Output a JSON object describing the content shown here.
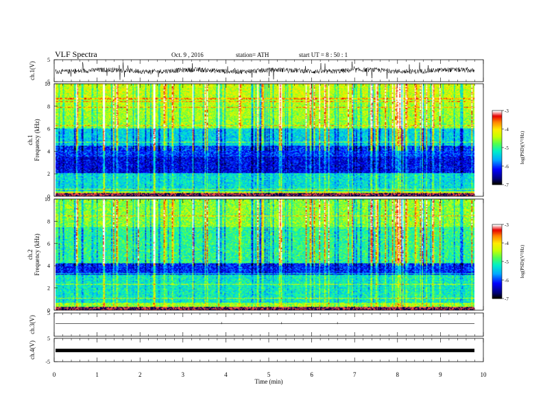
{
  "header": {
    "title": "VLF  Spectra",
    "date": "Oct. 9  , 2016",
    "station": "station= ATH",
    "start": "start  UT  =   8  : 50 : 1"
  },
  "chart_data": [
    {
      "type": "line",
      "panel": "ch1-waveform",
      "ylabel": "ch.1(V)",
      "ylim": [
        -5,
        5
      ],
      "yticks": [
        "5",
        "-5"
      ],
      "description_level": 0.0
    },
    {
      "type": "heatmap",
      "panel": "ch1-spectrogram",
      "ylabel_line1": "ch.1",
      "ylabel_line2": "Frequency  (kHz)",
      "ylim": [
        0,
        10
      ],
      "yticks": [
        "0",
        "2",
        "4",
        "6",
        "8",
        "10"
      ],
      "colorbar": {
        "label": "log(PSD)(V²/Hz)",
        "range": [
          -7,
          -3
        ],
        "ticks": [
          "-3",
          "-4",
          "-5",
          "-6",
          "-7"
        ]
      }
    },
    {
      "type": "heatmap",
      "panel": "ch2-spectrogram",
      "ylabel_line1": "ch.2",
      "ylabel_line2": "Frequency  (kHz)",
      "ylim": [
        0,
        10
      ],
      "yticks": [
        "0",
        "2",
        "4",
        "6",
        "8",
        "10"
      ],
      "colorbar": {
        "label": "log(PSD)(V²/Hz)",
        "range": [
          -7,
          -3
        ],
        "ticks": [
          "-3",
          "-4",
          "-5",
          "-6",
          "-7"
        ]
      }
    },
    {
      "type": "line",
      "panel": "ch3-waveform",
      "ylabel": "ch.3(V)",
      "ylim": [
        -5,
        5
      ],
      "yticks": [
        "5"
      ]
    },
    {
      "type": "line",
      "panel": "ch4-waveform",
      "ylabel": "ch.4(V)",
      "ylim": [
        -5,
        5
      ],
      "yticks": [
        "5",
        "-5"
      ]
    }
  ],
  "xaxis": {
    "label": "Time  (min)",
    "range": [
      0,
      10
    ],
    "ticks": [
      "0",
      "1",
      "2",
      "3",
      "4",
      "5",
      "6",
      "7",
      "8",
      "9",
      "10"
    ]
  },
  "colors": {
    "background": "#ffffff",
    "ink": "#000000"
  }
}
